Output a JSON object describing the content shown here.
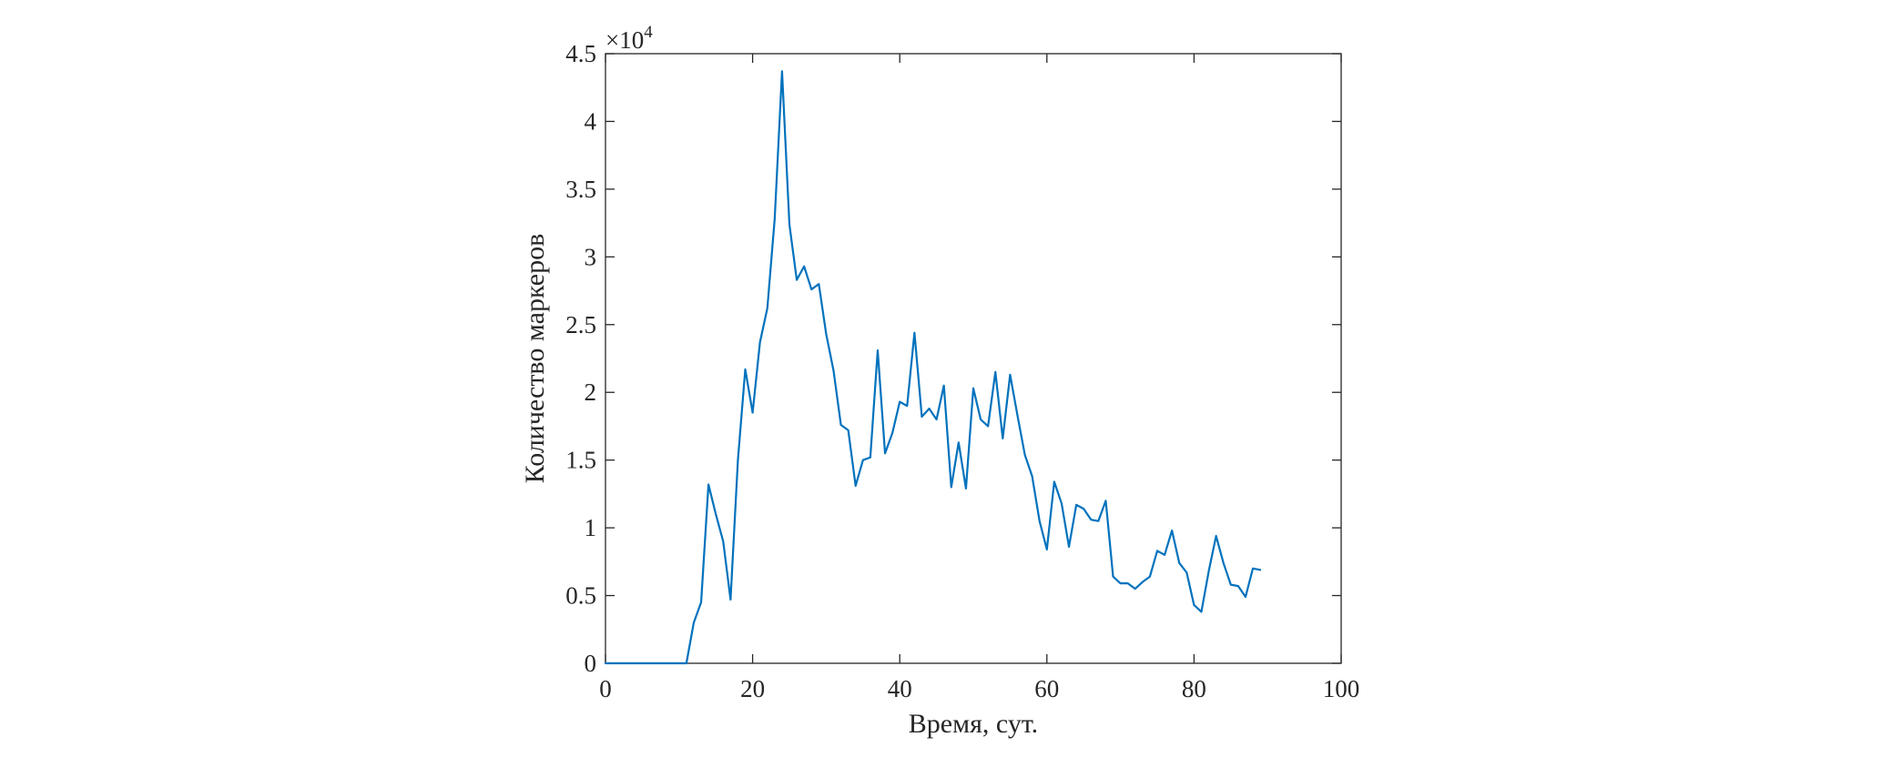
{
  "chart_data": {
    "type": "line",
    "title": "",
    "xlabel": "Время, сут.",
    "ylabel": "Количество маркеров",
    "xlim": [
      0,
      100
    ],
    "ylim": [
      0,
      4.5
    ],
    "x_ticks": [
      0,
      20,
      40,
      60,
      80,
      100
    ],
    "x_tick_labels": [
      "0",
      "20",
      "40",
      "60",
      "80",
      "100"
    ],
    "y_ticks": [
      0,
      0.5,
      1,
      1.5,
      2,
      2.5,
      3,
      3.5,
      4,
      4.5
    ],
    "y_tick_labels": [
      "0",
      "0.5",
      "1",
      "1.5",
      "2",
      "2.5",
      "3",
      "3.5",
      "4",
      "4.5"
    ],
    "y_multiplier": {
      "base": "×10",
      "exponent": "4"
    },
    "grid": false,
    "legend": "none",
    "line_color": "#0072BD",
    "series": [
      {
        "x": [
          0,
          1,
          2,
          3,
          4,
          5,
          6,
          7,
          8,
          9,
          10,
          11,
          12,
          13,
          14,
          15,
          16,
          17,
          18,
          19,
          20,
          21,
          22,
          23,
          24,
          25,
          26,
          27,
          28,
          29,
          30,
          31,
          32,
          33,
          34,
          35,
          36,
          37,
          38,
          39,
          40,
          41,
          42,
          43,
          44,
          45,
          46,
          47,
          48,
          49,
          50,
          51,
          52,
          53,
          54,
          55,
          56,
          57,
          58,
          59,
          60,
          61,
          62,
          63,
          64,
          65,
          66,
          67,
          68,
          69,
          70,
          71,
          72,
          73,
          74,
          75,
          76,
          77,
          78,
          79,
          80,
          81,
          82,
          83,
          84,
          85,
          86,
          87,
          88,
          89
        ],
        "y": [
          0,
          0,
          0,
          0,
          0,
          0,
          0,
          0,
          0,
          0,
          0,
          0,
          0.3,
          0.45,
          1.32,
          1.1,
          0.9,
          0.47,
          1.5,
          2.17,
          1.85,
          2.37,
          2.62,
          3.28,
          4.37,
          3.24,
          2.83,
          2.93,
          2.76,
          2.8,
          2.43,
          2.16,
          1.76,
          1.72,
          1.31,
          1.5,
          1.52,
          2.31,
          1.55,
          1.7,
          1.93,
          1.9,
          2.44,
          1.82,
          1.88,
          1.8,
          2.05,
          1.3,
          1.63,
          1.29,
          2.03,
          1.8,
          1.75,
          2.15,
          1.66,
          2.13,
          1.83,
          1.54,
          1.38,
          1.05,
          0.84,
          1.34,
          1.18,
          0.86,
          1.17,
          1.14,
          1.06,
          1.05,
          1.2,
          0.64,
          0.59,
          0.59,
          0.55,
          0.6,
          0.64,
          0.83,
          0.8,
          0.98,
          0.74,
          0.67,
          0.43,
          0.38,
          0.68,
          0.94,
          0.74,
          0.58,
          0.57,
          0.49,
          0.7,
          0.69
        ]
      }
    ]
  }
}
